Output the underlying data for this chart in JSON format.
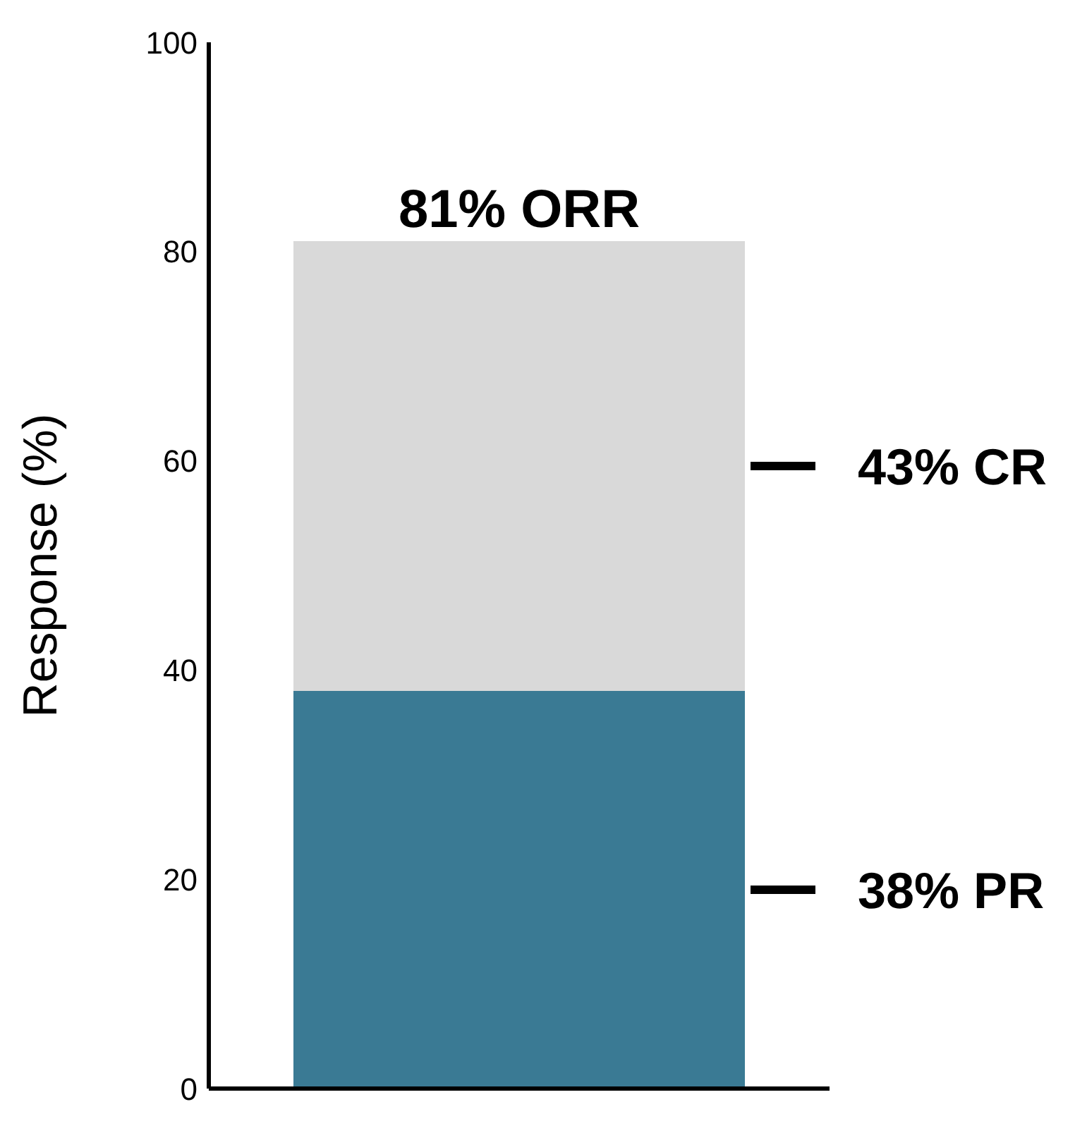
{
  "chart_data": {
    "type": "bar",
    "stacked": true,
    "categories": [
      null
    ],
    "ylabel": "Response (%)",
    "ylim": [
      0,
      100
    ],
    "yticks": [
      0,
      20,
      40,
      60,
      80,
      100
    ],
    "tick_labels": "y",
    "grid": false,
    "legend": false,
    "series": [
      {
        "color": "#3a7a94",
        "values": [
          38
        ]
      },
      {
        "color": "#d9d9d9",
        "values": [
          43
        ]
      }
    ],
    "annotations": [
      {
        "text": "81% ORR",
        "y": 81
      },
      "43% CR",
      "38% PR"
    ]
  }
}
